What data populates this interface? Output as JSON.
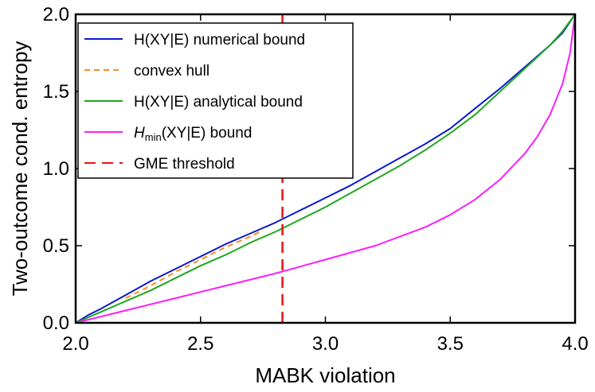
{
  "chart_data": {
    "type": "line",
    "xlabel": "MABK violation",
    "ylabel": "Two-outcome cond. entropy",
    "xlim": [
      2.0,
      4.0
    ],
    "ylim": [
      0.0,
      2.0
    ],
    "x_ticks": [
      "2.0",
      "2.5",
      "3.0",
      "3.5",
      "4.0"
    ],
    "y_ticks": [
      "0.0",
      "0.5",
      "1.0",
      "1.5",
      "2.0"
    ],
    "legend": "top-left",
    "grid": false,
    "series": [
      {
        "name": "H(XY|E) numerical bound",
        "color": "#0a1ad0",
        "style": "solid",
        "x": [
          2.0,
          2.05,
          2.1,
          2.2,
          2.3,
          2.4,
          2.5,
          2.6,
          2.7,
          2.8,
          2.9,
          3.0,
          3.1,
          3.2,
          3.3,
          3.4,
          3.5,
          3.6,
          3.7,
          3.8,
          3.9,
          3.95,
          4.0
        ],
        "y": [
          0.0,
          0.05,
          0.09,
          0.18,
          0.27,
          0.35,
          0.43,
          0.51,
          0.58,
          0.65,
          0.73,
          0.81,
          0.89,
          0.98,
          1.07,
          1.16,
          1.26,
          1.39,
          1.52,
          1.66,
          1.8,
          1.88,
          2.0
        ]
      },
      {
        "name": "convex hull",
        "color": "#ff8c1a",
        "style": "dashed",
        "x": [
          2.2,
          2.3,
          2.4,
          2.5,
          2.6,
          2.7,
          2.75
        ],
        "y": [
          0.16,
          0.24,
          0.33,
          0.41,
          0.49,
          0.56,
          0.6
        ]
      },
      {
        "name": "H(XY|E) analytical bound",
        "color": "#1fa81f",
        "style": "solid",
        "x": [
          2.0,
          2.1,
          2.2,
          2.3,
          2.4,
          2.5,
          2.6,
          2.7,
          2.8,
          2.9,
          3.0,
          3.1,
          3.2,
          3.3,
          3.4,
          3.5,
          3.6,
          3.7,
          3.8,
          3.9,
          3.95,
          4.0
        ],
        "y": [
          0.0,
          0.07,
          0.14,
          0.21,
          0.29,
          0.37,
          0.44,
          0.52,
          0.59,
          0.67,
          0.75,
          0.84,
          0.93,
          1.02,
          1.12,
          1.23,
          1.35,
          1.5,
          1.65,
          1.8,
          1.89,
          2.0
        ]
      },
      {
        "name": "Hmin(XY|E) bound",
        "name_main": "H",
        "name_sub": "min",
        "name_rest": "(XY|E) bound",
        "color": "#ff1cff",
        "style": "solid",
        "x": [
          2.0,
          2.2,
          2.4,
          2.6,
          2.8,
          3.0,
          3.2,
          3.4,
          3.5,
          3.6,
          3.7,
          3.8,
          3.85,
          3.9,
          3.95,
          3.98,
          4.0
        ],
        "y": [
          0.0,
          0.08,
          0.16,
          0.24,
          0.32,
          0.41,
          0.5,
          0.62,
          0.7,
          0.8,
          0.93,
          1.1,
          1.21,
          1.35,
          1.55,
          1.75,
          2.0
        ]
      },
      {
        "name": "GME threshold",
        "color": "#ee1111",
        "style": "longdash",
        "x": [
          2.828,
          2.828
        ],
        "y": [
          0.0,
          2.0
        ]
      }
    ]
  }
}
